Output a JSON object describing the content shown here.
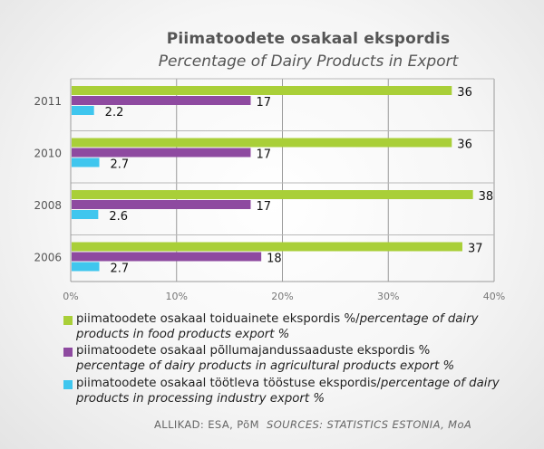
{
  "chart_data": {
    "type": "bar",
    "orientation": "horizontal",
    "title": "Piimatoodete osakaal ekspordis",
    "subtitle": "Percentage of Dairy Products in Export",
    "categories": [
      "2011",
      "2010",
      "2008",
      "2006"
    ],
    "series": [
      {
        "name": "piimatoodete osakaal toiduainete ekspordis %/percentage of dairy products in food products export %",
        "name_et": "piimatoodete osakaal toiduainete ekspordis %/",
        "name_en": "percentage of dairy products in food products export %",
        "color": "#a9cf38",
        "values": [
          36,
          36,
          38,
          37
        ]
      },
      {
        "name": "piimatoodete osakaal põllumajandussaaduste ekspordis % percentage of dairy products in agricultural products export %",
        "name_et": "piimatoodete osakaal põllumajandussaaduste ekspordis %",
        "name_en": "percentage of dairy products in agricultural products export %",
        "color": "#8e4aa0",
        "values": [
          17,
          17,
          17,
          18
        ]
      },
      {
        "name": "piimatoodete osakaal töötleva tööstuse ekspordis/percentage of dairy products in processing industry export %",
        "name_et": "piimatoodete osakaal töötleva tööstuse ekspordis/",
        "name_en": "percentage of dairy products in processing industry export %",
        "color": "#3fc6ee",
        "values": [
          2.2,
          2.7,
          2.6,
          2.7
        ]
      }
    ],
    "value_labels": [
      [
        "36",
        "36",
        "38",
        "37"
      ],
      [
        "17",
        "17",
        "17",
        "18"
      ],
      [
        "2.2",
        "2.7",
        "2.6",
        "2.7"
      ]
    ],
    "xlim": [
      0,
      40
    ],
    "xticks": [
      0,
      10,
      20,
      30,
      40
    ],
    "xtick_labels": [
      "0%",
      "10%",
      "20%",
      "30%",
      "40%"
    ],
    "grid": true,
    "legend_placement": "bottom"
  },
  "sources": {
    "et": "ALLIKAD: ESA, PõM",
    "en": "SOURCES: STATISTICS ESTONIA, MoA"
  }
}
